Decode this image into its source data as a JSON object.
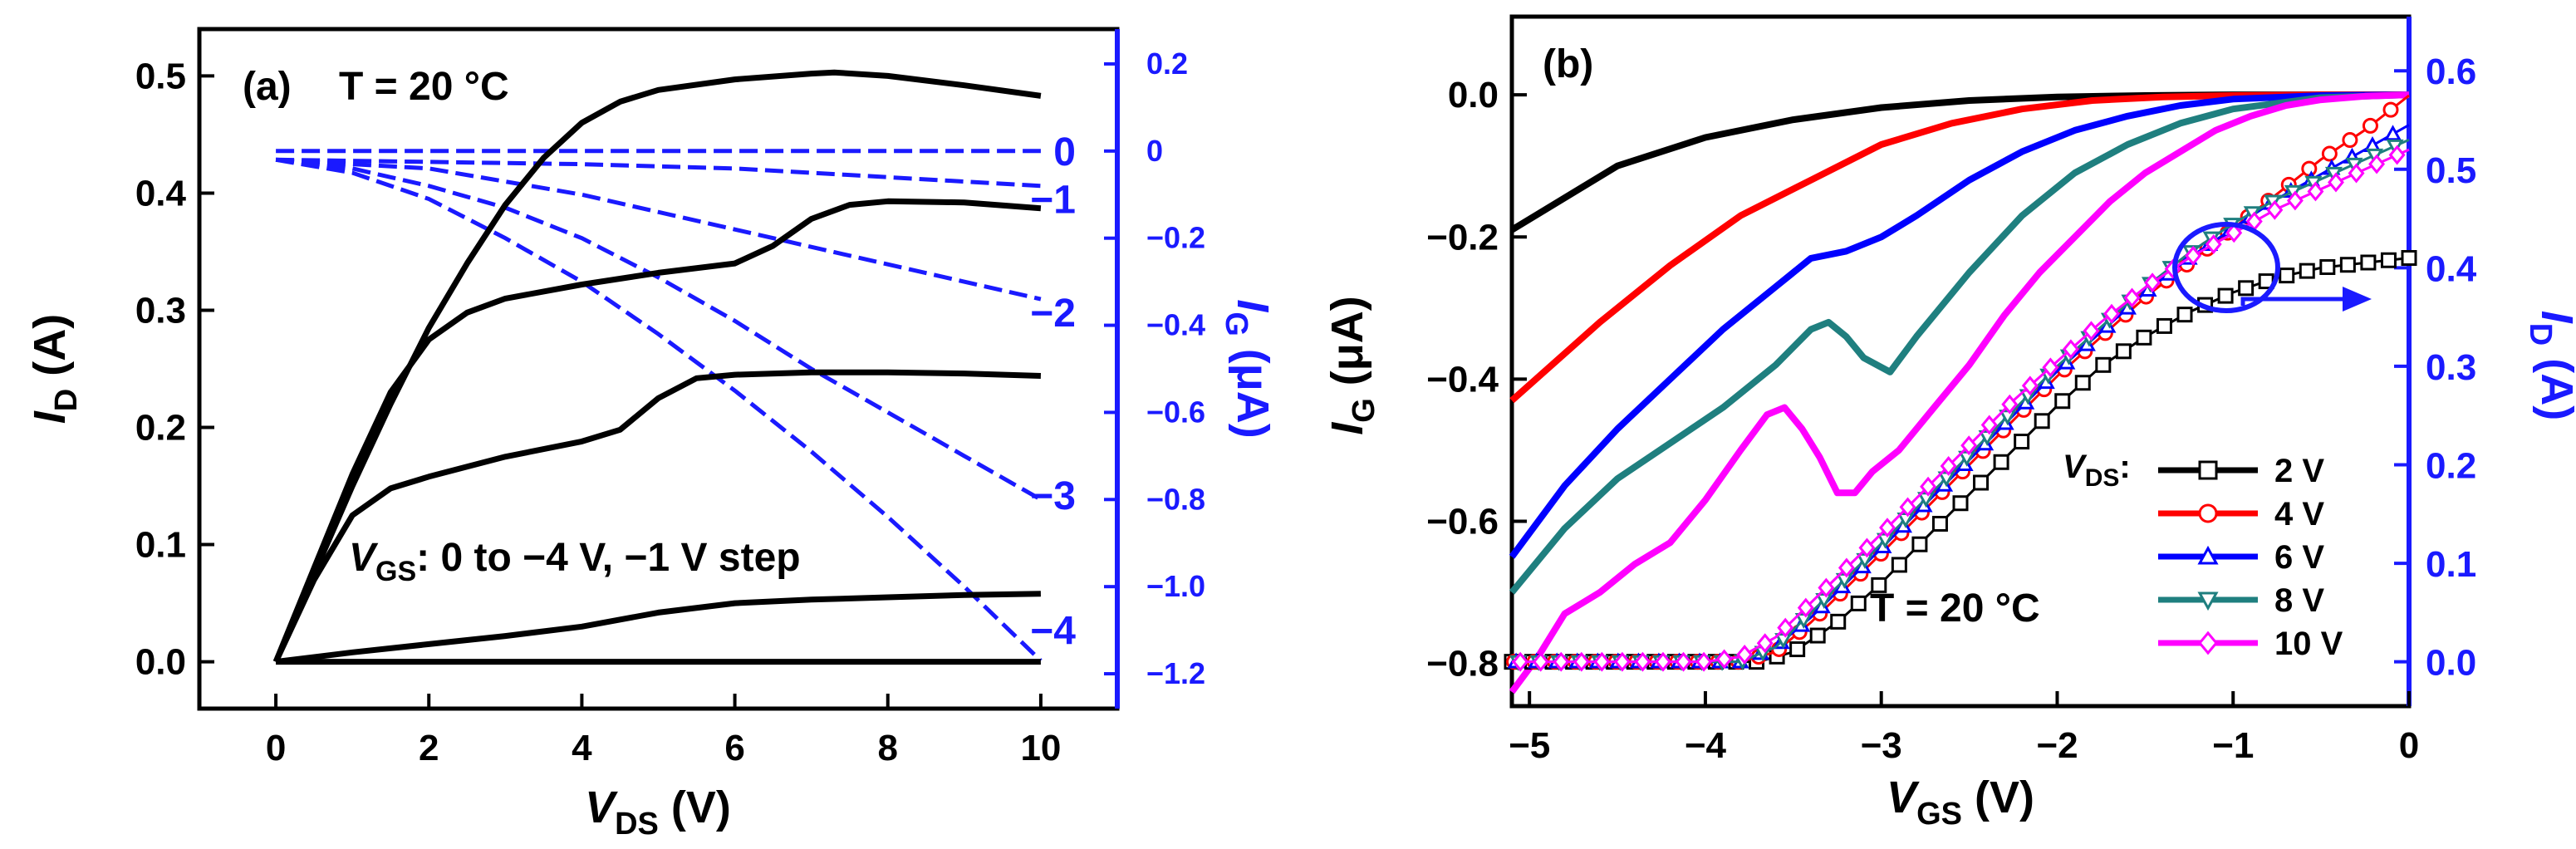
{
  "chart_data": [
    {
      "panel": "(a)",
      "type": "line",
      "annotation_temp": "T = 20 °C",
      "vgs_note": {
        "symbol": "V",
        "sub": "GS",
        "text": ": 0 to −4 V, −1 V step"
      },
      "xlabel": {
        "symbol": "V",
        "sub": "DS",
        "unit": " (V)"
      },
      "ylabel": {
        "symbol": "I",
        "sub": "D",
        "unit": " (A)"
      },
      "y2label": {
        "symbol": "I",
        "sub": "G",
        "unit": " (μA)"
      },
      "xlim": [
        -1,
        11
      ],
      "ylim": [
        -0.04,
        0.54
      ],
      "y2lim": [
        -1.28,
        0.28
      ],
      "xticks": [
        0,
        2,
        4,
        6,
        8,
        10
      ],
      "xtick_labels": [
        "0",
        "2",
        "4",
        "6",
        "8",
        "10"
      ],
      "yticks": [
        0,
        0.1,
        0.2,
        0.3,
        0.4,
        0.5
      ],
      "ytick_labels": [
        "0.0",
        "0.1",
        "0.2",
        "0.3",
        "0.4",
        "0.5"
      ],
      "y2ticks": [
        0.2,
        0,
        -0.2,
        -0.4,
        -0.6,
        -0.8,
        -1.0,
        -1.2
      ],
      "y2tick_labels": [
        "0.2",
        "0",
        "−0.2",
        "−0.4",
        "−0.6",
        "−0.8",
        "−1.0",
        "−1.2"
      ],
      "curve_labels": [
        {
          "text": "0",
          "y2": 0.0
        },
        {
          "text": "−1",
          "y2": -0.11
        },
        {
          "text": "−2",
          "y2": -0.37
        },
        {
          "text": "−3",
          "y2": -0.79
        },
        {
          "text": "−4",
          "y2": -1.1
        }
      ],
      "series_id": [
        {
          "name": "V_GS = 0 V",
          "x": [
            0,
            0.5,
            1,
            1.5,
            2,
            2.5,
            3,
            3.5,
            4,
            4.5,
            5,
            6,
            7,
            7.3,
            8,
            9,
            10
          ],
          "y": [
            0,
            0.075,
            0.15,
            0.22,
            0.285,
            0.34,
            0.39,
            0.43,
            0.46,
            0.478,
            0.488,
            0.497,
            0.502,
            0.503,
            0.5,
            0.492,
            0.483
          ]
        },
        {
          "name": "V_GS = −1 V",
          "x": [
            0,
            0.5,
            1,
            1.5,
            2,
            2.5,
            3,
            4,
            5,
            6,
            6.5,
            7,
            7.5,
            8,
            9,
            10
          ],
          "y": [
            0,
            0.08,
            0.16,
            0.23,
            0.275,
            0.298,
            0.31,
            0.322,
            0.332,
            0.34,
            0.355,
            0.378,
            0.39,
            0.393,
            0.392,
            0.387
          ]
        },
        {
          "name": "V_GS = −2 V",
          "x": [
            0,
            0.5,
            1,
            1.5,
            2,
            3,
            4,
            4.5,
            5,
            5.5,
            6,
            7,
            8,
            9,
            10
          ],
          "y": [
            0,
            0.07,
            0.125,
            0.148,
            0.158,
            0.175,
            0.188,
            0.198,
            0.225,
            0.242,
            0.245,
            0.247,
            0.247,
            0.246,
            0.244
          ]
        },
        {
          "name": "V_GS = −3 V",
          "x": [
            0,
            1,
            2,
            3,
            4,
            5,
            6,
            7,
            8,
            9,
            10
          ],
          "y": [
            0,
            0.008,
            0.015,
            0.022,
            0.03,
            0.042,
            0.05,
            0.053,
            0.055,
            0.057,
            0.058
          ]
        },
        {
          "name": "V_GS = −4 V",
          "x": [
            0,
            10
          ],
          "y": [
            0,
            0
          ]
        }
      ],
      "series_ig": [
        {
          "name": "I_G, V_GS = 0 V",
          "x": [
            0,
            10
          ],
          "y": [
            0.0,
            0.0
          ]
        },
        {
          "name": "I_G, V_GS = −1 V",
          "x": [
            0,
            2,
            4,
            6,
            8,
            10
          ],
          "y": [
            -0.02,
            -0.025,
            -0.03,
            -0.04,
            -0.06,
            -0.08
          ]
        },
        {
          "name": "I_G, V_GS = −2 V",
          "x": [
            0,
            2,
            4,
            6,
            8,
            10
          ],
          "y": [
            -0.02,
            -0.04,
            -0.1,
            -0.18,
            -0.26,
            -0.34
          ]
        },
        {
          "name": "I_G, V_GS = −3 V",
          "x": [
            0,
            1,
            2,
            3,
            4,
            5,
            6,
            7,
            8,
            9,
            10
          ],
          "y": [
            -0.02,
            -0.04,
            -0.08,
            -0.13,
            -0.2,
            -0.29,
            -0.39,
            -0.5,
            -0.6,
            -0.7,
            -0.8
          ]
        },
        {
          "name": "I_G, V_GS = −4 V",
          "x": [
            0,
            1,
            2,
            3,
            4,
            5,
            6,
            7,
            8,
            9,
            10
          ],
          "y": [
            -0.02,
            -0.05,
            -0.11,
            -0.2,
            -0.3,
            -0.42,
            -0.55,
            -0.69,
            -0.84,
            -1.0,
            -1.17
          ]
        }
      ]
    },
    {
      "panel": "(b)",
      "type": "line",
      "annotation_temp": "T = 20 °C",
      "xlabel": {
        "symbol": "V",
        "sub": "GS",
        "unit": " (V)"
      },
      "ylabel": {
        "symbol": "I",
        "sub": "G",
        "unit": " (μA)"
      },
      "y2label": {
        "symbol": "I",
        "sub": "D",
        "unit": " (A)"
      },
      "xlim": [
        -5.1,
        0
      ],
      "ylim": [
        -0.86,
        0.11
      ],
      "y2lim": [
        -0.045,
        0.655
      ],
      "xticks": [
        -5,
        -4,
        -3,
        -2,
        -1,
        0
      ],
      "xtick_labels": [
        "−5",
        "−4",
        "−3",
        "−2",
        "−1",
        "0"
      ],
      "yticks": [
        0,
        -0.2,
        -0.4,
        -0.6,
        -0.8
      ],
      "ytick_labels": [
        "0.0",
        "−0.2",
        "−0.4",
        "−0.6",
        "−0.8"
      ],
      "y2ticks": [
        0,
        0.1,
        0.2,
        0.3,
        0.4,
        0.5,
        0.6
      ],
      "y2tick_labels": [
        "0.0",
        "0.1",
        "0.2",
        "0.3",
        "0.4",
        "0.5",
        "0.6"
      ],
      "legend": {
        "title": {
          "symbol": "V",
          "sub": "DS",
          "text": ":"
        },
        "location": "bottom-right"
      },
      "series": [
        {
          "name": "2 V",
          "color": "#000000",
          "marker": "square",
          "ig_x": [
            -5.1,
            -4.5,
            -4,
            -3.5,
            -3,
            -2.5,
            -2,
            -1.5,
            -1,
            -0.5,
            0
          ],
          "ig_y": [
            -0.19,
            -0.1,
            -0.06,
            -0.035,
            -0.018,
            -0.008,
            -0.003,
            -0.001,
            0,
            0,
            0
          ],
          "id_x": [
            -5.1,
            -4.5,
            -4,
            -3.7,
            -3.5,
            -3.25,
            -3,
            -2.75,
            -2.5,
            -2.25,
            -2,
            -1.75,
            -1.5,
            -1.25,
            -1,
            -0.75,
            -0.5,
            -0.25,
            0
          ],
          "id_y": [
            0,
            0,
            0,
            0,
            0.01,
            0.04,
            0.08,
            0.125,
            0.17,
            0.215,
            0.26,
            0.3,
            0.33,
            0.355,
            0.375,
            0.39,
            0.4,
            0.405,
            0.41
          ]
        },
        {
          "name": "4 V",
          "color": "#ff0000",
          "marker": "circle",
          "ig_x": [
            -5.1,
            -4.6,
            -4.2,
            -3.8,
            -3.4,
            -3,
            -2.6,
            -2.2,
            -1.8,
            -1.4,
            -1,
            -0.5,
            0
          ],
          "ig_y": [
            -0.43,
            -0.32,
            -0.24,
            -0.17,
            -0.12,
            -0.07,
            -0.04,
            -0.02,
            -0.008,
            -0.003,
            -0.001,
            0,
            0
          ],
          "id_x": [
            -5.1,
            -4.5,
            -4,
            -3.8,
            -3.6,
            -3.4,
            -3.2,
            -3,
            -2.75,
            -2.5,
            -2.25,
            -2,
            -1.75,
            -1.5,
            -1.25,
            -1,
            -0.75,
            -0.5,
            -0.25,
            0
          ],
          "id_y": [
            0,
            0,
            0,
            0,
            0.01,
            0.04,
            0.075,
            0.11,
            0.155,
            0.2,
            0.245,
            0.29,
            0.33,
            0.37,
            0.405,
            0.44,
            0.475,
            0.51,
            0.54,
            0.575
          ]
        },
        {
          "name": "6 V",
          "color": "#0000ff",
          "marker": "triangle-up",
          "ig_x": [
            -5.1,
            -4.8,
            -4.5,
            -4.2,
            -3.9,
            -3.6,
            -3.4,
            -3.2,
            -3,
            -2.8,
            -2.5,
            -2.2,
            -1.9,
            -1.6,
            -1.3,
            -1,
            -0.5,
            0
          ],
          "ig_y": [
            -0.65,
            -0.55,
            -0.47,
            -0.4,
            -0.33,
            -0.27,
            -0.23,
            -0.22,
            -0.2,
            -0.17,
            -0.12,
            -0.08,
            -0.05,
            -0.03,
            -0.015,
            -0.006,
            -0.001,
            0
          ],
          "id_x": [
            -5.1,
            -4.5,
            -4,
            -3.8,
            -3.6,
            -3.4,
            -3.2,
            -3,
            -2.75,
            -2.5,
            -2.25,
            -2,
            -1.75,
            -1.5,
            -1.25,
            -1,
            -0.75,
            -0.5,
            -0.25,
            0
          ],
          "id_y": [
            0,
            0,
            0,
            0,
            0.015,
            0.045,
            0.08,
            0.115,
            0.16,
            0.205,
            0.25,
            0.295,
            0.335,
            0.375,
            0.41,
            0.44,
            0.47,
            0.495,
            0.52,
            0.545
          ]
        },
        {
          "name": "8 V",
          "color": "#1f7f7f",
          "marker": "triangle-down",
          "ig_x": [
            -5.1,
            -4.8,
            -4.5,
            -4.2,
            -3.9,
            -3.6,
            -3.4,
            -3.3,
            -3.2,
            -3.1,
            -2.95,
            -2.8,
            -2.5,
            -2.2,
            -1.9,
            -1.6,
            -1.3,
            -1,
            -0.5,
            0
          ],
          "ig_y": [
            -0.7,
            -0.61,
            -0.54,
            -0.49,
            -0.44,
            -0.38,
            -0.33,
            -0.32,
            -0.34,
            -0.37,
            -0.39,
            -0.34,
            -0.25,
            -0.17,
            -0.11,
            -0.07,
            -0.04,
            -0.02,
            -0.004,
            0
          ],
          "id_x": [
            -5.1,
            -4.5,
            -4,
            -3.8,
            -3.6,
            -3.4,
            -3.2,
            -3,
            -2.75,
            -2.5,
            -2.25,
            -2,
            -1.75,
            -1.5,
            -1.25,
            -1,
            -0.75,
            -0.5,
            -0.25,
            0
          ],
          "id_y": [
            0,
            0,
            0,
            0,
            0.015,
            0.05,
            0.085,
            0.12,
            0.165,
            0.21,
            0.255,
            0.3,
            0.34,
            0.38,
            0.415,
            0.445,
            0.47,
            0.49,
            0.51,
            0.53
          ]
        },
        {
          "name": "10 V",
          "color": "#ff00ff",
          "marker": "diamond",
          "ig_x": [
            -5.1,
            -4.95,
            -4.8,
            -4.6,
            -4.4,
            -4.2,
            -4,
            -3.8,
            -3.65,
            -3.55,
            -3.45,
            -3.35,
            -3.25,
            -3.15,
            -3.05,
            -2.9,
            -2.7,
            -2.5,
            -2.3,
            -2.1,
            -1.9,
            -1.7,
            -1.5,
            -1.3,
            -1.1,
            -0.9,
            -0.7,
            -0.5,
            -0.25,
            0
          ],
          "ig_y": [
            -0.84,
            -0.79,
            -0.73,
            -0.7,
            -0.66,
            -0.63,
            -0.57,
            -0.5,
            -0.45,
            -0.44,
            -0.47,
            -0.51,
            -0.56,
            -0.56,
            -0.53,
            -0.5,
            -0.44,
            -0.38,
            -0.31,
            -0.25,
            -0.2,
            -0.15,
            -0.11,
            -0.08,
            -0.05,
            -0.03,
            -0.015,
            -0.007,
            -0.002,
            0
          ],
          "id_x": [
            -5.1,
            -4.5,
            -4,
            -3.8,
            -3.6,
            -3.4,
            -3.2,
            -3,
            -2.75,
            -2.5,
            -2.25,
            -2,
            -1.75,
            -1.5,
            -1.25,
            -1,
            -0.75,
            -0.5,
            -0.25,
            0
          ],
          "id_y": [
            0,
            0,
            0,
            0.005,
            0.025,
            0.06,
            0.095,
            0.13,
            0.175,
            0.22,
            0.265,
            0.305,
            0.345,
            0.38,
            0.41,
            0.435,
            0.46,
            0.48,
            0.5,
            0.52
          ]
        }
      ]
    }
  ],
  "colors": {
    "axis_left": "#000000",
    "axis_right_blue": "#1a1aff",
    "ig_dashed": "#1a1aff"
  }
}
